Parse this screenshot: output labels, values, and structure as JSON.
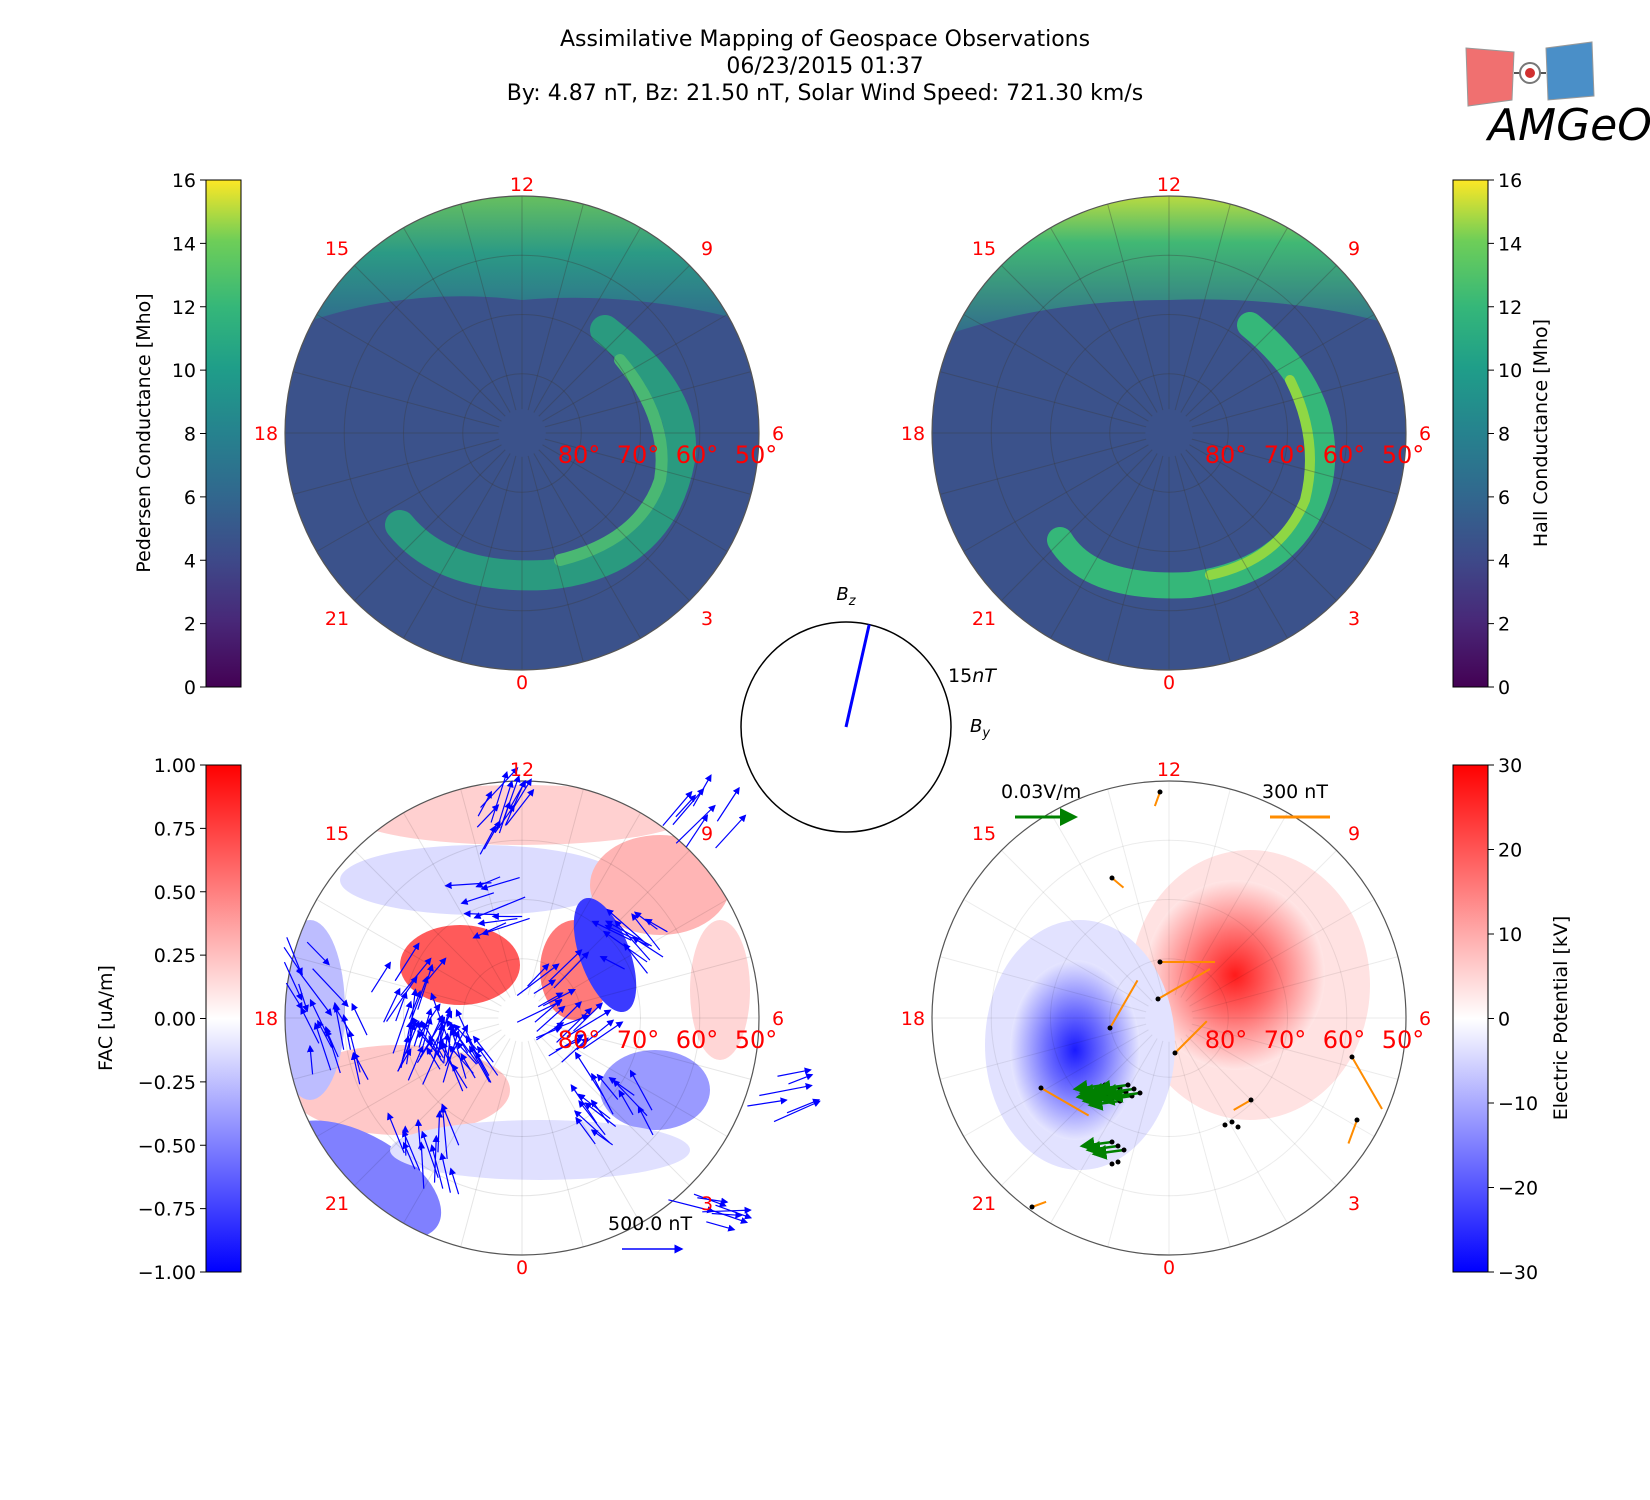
{
  "header": {
    "title": "Assimilative Mapping of Geospace Observations",
    "datetime": "06/23/2015 01:37",
    "conditions": "By: 4.87 nT, Bz: 21.50 nT, Solar Wind Speed: 721.30 km/s"
  },
  "logo": {
    "text": "AMGeO"
  },
  "colors": {
    "mlt_label": "#ff0000",
    "lat_label": "#ff0000",
    "imf_vector": "#0000ff",
    "ground_vector": "#0000ff",
    "efield_vector": "#008000",
    "mag_vector": "#ff8c00"
  },
  "chart_data": [
    {
      "id": "pedersen",
      "type": "heatmap",
      "projection": "polar",
      "mlt_labels": [
        "12",
        "15",
        "9",
        "18",
        "6",
        "21",
        "3",
        "0"
      ],
      "lat_labels": [
        "80°",
        "70°",
        "60°",
        "50°"
      ],
      "colorbar": {
        "label": "Pedersen Conductance [Mho]",
        "ticks": [
          "0",
          "2",
          "4",
          "6",
          "8",
          "10",
          "12",
          "14",
          "16"
        ],
        "range": [
          0,
          16
        ],
        "colormap": "viridis",
        "placement": "left"
      }
    },
    {
      "id": "hall",
      "type": "heatmap",
      "projection": "polar",
      "mlt_labels": [
        "12",
        "15",
        "9",
        "18",
        "6",
        "21",
        "3",
        "0"
      ],
      "lat_labels": [
        "80°",
        "70°",
        "60°",
        "50°"
      ],
      "colorbar": {
        "label": "Hall Conductance [Mho]",
        "ticks": [
          "0",
          "2",
          "4",
          "6",
          "8",
          "10",
          "12",
          "14",
          "16"
        ],
        "range": [
          0,
          16
        ],
        "colormap": "viridis",
        "placement": "right"
      }
    },
    {
      "id": "imf_clock",
      "type": "line",
      "y_label": "B",
      "y_label_sub": "z",
      "x_label": "B",
      "x_label_sub": "y",
      "scale_value": "15",
      "scale_unit": "nT",
      "vector": {
        "by": 4.87,
        "bz": 21.5
      }
    },
    {
      "id": "fac",
      "type": "heatmap",
      "projection": "polar",
      "mlt_labels": [
        "12",
        "15",
        "9",
        "18",
        "6",
        "21",
        "3",
        "0"
      ],
      "lat_labels": [
        "80°",
        "70°",
        "60°",
        "50°"
      ],
      "colorbar": {
        "label": "FAC [uA/m]",
        "ticks": [
          "1.00",
          "0.75",
          "0.50",
          "0.25",
          "0.00",
          "−0.25",
          "−0.50",
          "−0.75",
          "−1.00"
        ],
        "range": [
          -1,
          1
        ],
        "colormap": "bwr",
        "placement": "left"
      },
      "vector_key": "500.0 nT"
    },
    {
      "id": "potential",
      "type": "heatmap",
      "projection": "polar",
      "mlt_labels": [
        "12",
        "15",
        "9",
        "18",
        "6",
        "21",
        "3",
        "0"
      ],
      "lat_labels": [
        "80°",
        "70°",
        "60°",
        "50°"
      ],
      "colorbar": {
        "label": "Electric Potential [kV]",
        "ticks": [
          "30",
          "20",
          "10",
          "0",
          "−10",
          "−20",
          "−30"
        ],
        "range": [
          -30,
          30
        ],
        "colormap": "bwr",
        "placement": "right"
      },
      "efield_key": "0.03V/m",
      "mag_key": "300 nT"
    }
  ]
}
